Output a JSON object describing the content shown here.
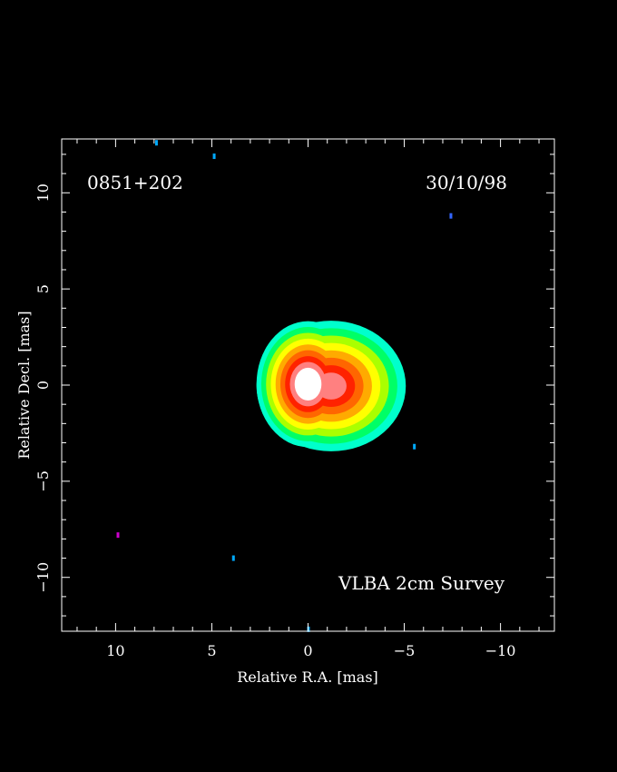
{
  "chart_data": {
    "type": "heatmap",
    "source_name": "0851+202",
    "date": "30/10/98",
    "survey": "VLBA 2cm Survey",
    "xlabel": "Relative R.A. [mas]",
    "ylabel": "Relative Decl. [mas]",
    "xlim": [
      12.8,
      -12.8
    ],
    "ylim": [
      -12.8,
      12.8
    ],
    "x_ticks": [
      10,
      5,
      0,
      -5,
      -10
    ],
    "y_ticks": [
      10,
      5,
      0,
      -5,
      -10
    ],
    "tick_labels_x": [
      "10",
      "5",
      "0",
      "−5",
      "−10"
    ],
    "tick_labels_y": [
      "10",
      "5",
      "0",
      "−5",
      "−10"
    ],
    "grid": false,
    "colormap": [
      "#00ffcc",
      "#00ff66",
      "#aaff00",
      "#ffff00",
      "#ffaa00",
      "#ff6600",
      "#ff2200",
      "#ff8080",
      "#ffffff"
    ],
    "components": [
      {
        "x": 0.0,
        "y": 0.05,
        "level": 9,
        "sx": 0.45,
        "sy": 0.55
      },
      {
        "x": -1.2,
        "y": -0.05,
        "level": 7,
        "sx": 0.8,
        "sy": 0.7
      },
      {
        "x": -2.2,
        "y": 0.0,
        "level": 5,
        "sx": 0.6,
        "sy": 0.6
      },
      {
        "x": -3.0,
        "y": -1.0,
        "level": 3,
        "sx": 0.3,
        "sy": 0.35
      },
      {
        "x": -3.3,
        "y": -0.3,
        "level": 1,
        "sx": 0.3,
        "sy": 0.4
      }
    ],
    "noise_points": [
      {
        "x": 7.9,
        "y": 12.6,
        "color": "#00aaff"
      },
      {
        "x": 4.9,
        "y": 11.9,
        "color": "#00aaff"
      },
      {
        "x": -7.4,
        "y": 8.8,
        "color": "#3366ff"
      },
      {
        "x": -5.5,
        "y": -3.2,
        "color": "#00aaff"
      },
      {
        "x": 9.9,
        "y": -7.8,
        "color": "#cc00cc"
      },
      {
        "x": 3.9,
        "y": -9.0,
        "color": "#00aaff"
      },
      {
        "x": 0.0,
        "y": -12.7,
        "color": "#00aaff"
      }
    ]
  }
}
